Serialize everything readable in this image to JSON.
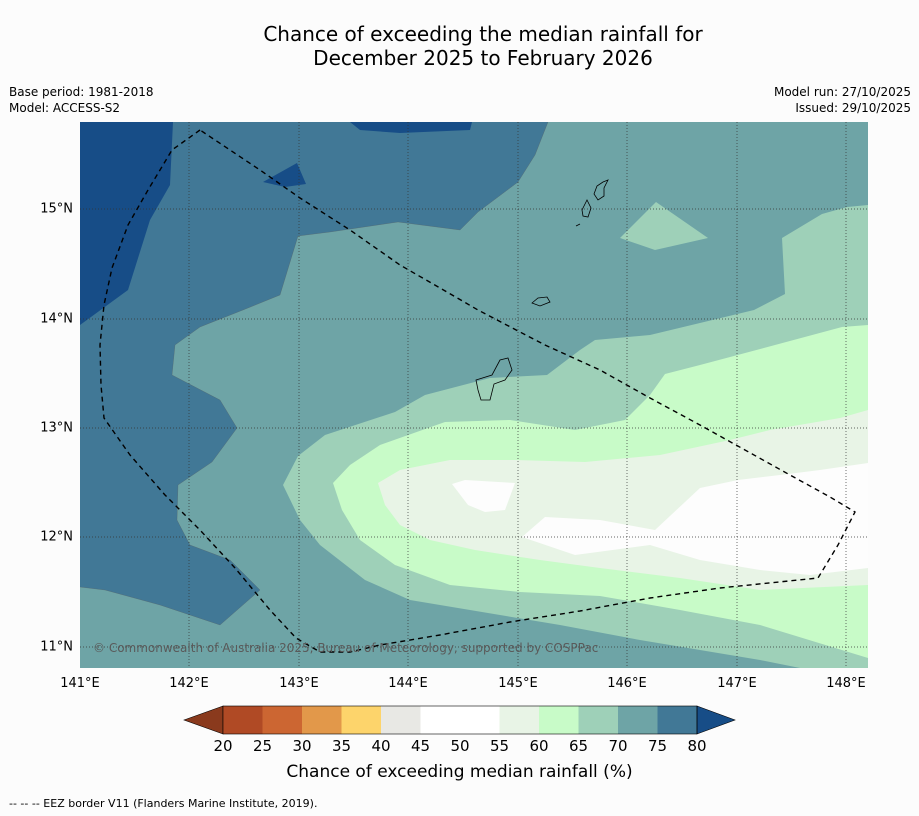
{
  "title": {
    "line1": "Chance of exceeding the median rainfall for",
    "line2": "December 2025 to February 2026"
  },
  "meta": {
    "base_period": "Base period: 1981-2018",
    "model": "Model: ACCESS-S2",
    "model_run": "Model run: 27/10/2025",
    "issued": "Issued: 29/10/2025"
  },
  "map": {
    "lat_labels": [
      "15°N",
      "14°N",
      "13°N",
      "12°N",
      "11°N"
    ],
    "lon_labels": [
      "141°E",
      "142°E",
      "143°E",
      "144°E",
      "145°E",
      "146°E",
      "147°E",
      "148°E"
    ],
    "copyright": "© Commonwealth of Australia 2025, Bureau of Meteorology, supported by COSPPac"
  },
  "colorbar": {
    "ticks": [
      "20",
      "25",
      "30",
      "35",
      "40",
      "45",
      "50",
      "55",
      "60",
      "65",
      "70",
      "75",
      "80"
    ],
    "label": "Chance of exceeding median rainfall (%)",
    "colors": [
      "#8a3a1d",
      "#b04a25",
      "#cc6632",
      "#e2984a",
      "#fdd46b",
      "#e8e8e4",
      "#ffffff",
      "#ffffff",
      "#e8f4e6",
      "#c8fbc8",
      "#9ed0b8",
      "#6ea4a6",
      "#417896",
      "#174d87"
    ]
  },
  "footnote": "--  --  -- EEZ border V11 (Flanders Marine Institute, 2019)."
}
